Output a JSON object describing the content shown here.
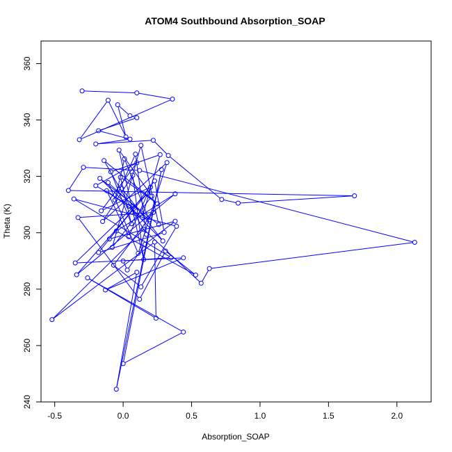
{
  "chart_data": {
    "type": "line",
    "title": "ATOM4 Southbound Absorption_SOAP",
    "xlabel": "Absorption_SOAP",
    "ylabel": "Theta (K)",
    "xlim": [
      -0.6,
      2.25
    ],
    "ylim": [
      240,
      368
    ],
    "x_ticks": [
      -0.5,
      0.0,
      0.5,
      1.0,
      1.5,
      2.0
    ],
    "x_tick_labels": [
      "-0.5",
      "0.0",
      "0.5",
      "1.0",
      "1.5",
      "2.0"
    ],
    "y_ticks": [
      240,
      260,
      280,
      300,
      320,
      340,
      360
    ],
    "y_tick_labels": [
      "240",
      "260",
      "280",
      "300",
      "320",
      "340",
      "360"
    ],
    "grid": false,
    "series_color": "#0000ff",
    "marker": "open-circle",
    "points": [
      [
        -0.3,
        350.3
      ],
      [
        0.1,
        349.6
      ],
      [
        0.36,
        347.4
      ],
      [
        -0.32,
        333.0
      ],
      [
        -0.11,
        347.0
      ],
      [
        0.02,
        334.0
      ],
      [
        -0.04,
        345.4
      ],
      [
        0.05,
        341.5
      ],
      [
        0.1,
        340.8
      ],
      [
        -0.18,
        336.2
      ],
      [
        0.05,
        333.2
      ],
      [
        -0.2,
        331.5
      ],
      [
        0.22,
        332.8
      ],
      [
        0.33,
        327.4
      ],
      [
        0.72,
        311.8
      ],
      [
        0.84,
        310.5
      ],
      [
        1.69,
        313.1
      ],
      [
        -0.4,
        315.0
      ],
      [
        -0.29,
        323.2
      ],
      [
        0.12,
        322.1
      ],
      [
        2.13,
        296.6
      ],
      [
        0.63,
        287.3
      ],
      [
        0.57,
        282.1
      ],
      [
        0.15,
        301.2
      ],
      [
        -0.52,
        269.2
      ],
      [
        0.23,
        296.7
      ],
      [
        0.24,
        269.7
      ],
      [
        -0.26,
        284.0
      ],
      [
        0.44,
        264.8
      ],
      [
        0.0,
        253.6
      ],
      [
        0.28,
        322.4
      ],
      [
        -0.05,
        244.5
      ],
      [
        0.1,
        286.0
      ],
      [
        -0.13,
        279.7
      ],
      [
        0.44,
        291.1
      ],
      [
        -0.35,
        289.3
      ],
      [
        0.18,
        314.1
      ],
      [
        -0.34,
        285.1
      ],
      [
        0.38,
        313.8
      ],
      [
        -0.05,
        300.6
      ],
      [
        0.53,
        285.0
      ],
      [
        0.31,
        293.5
      ],
      [
        0.12,
        276.4
      ],
      [
        -0.33,
        305.4
      ],
      [
        0.22,
        307.2
      ],
      [
        -0.07,
        288.5
      ],
      [
        0.13,
        280.8
      ],
      [
        0.39,
        302.3
      ],
      [
        -0.36,
        312.0
      ],
      [
        0.35,
        291.2
      ],
      [
        0.0,
        290.0
      ],
      [
        0.03,
        286.8
      ],
      [
        0.16,
        295.9
      ],
      [
        0.38,
        304.1
      ],
      [
        -0.1,
        297.8
      ],
      [
        0.23,
        318.4
      ],
      [
        0.3,
        300.1
      ],
      [
        -0.18,
        293.0
      ],
      [
        0.08,
        308.7
      ],
      [
        -0.2,
        316.7
      ],
      [
        0.1,
        324.8
      ],
      [
        -0.16,
        307.8
      ],
      [
        0.2,
        316.2
      ],
      [
        0.04,
        298.6
      ],
      [
        -0.12,
        314.9
      ],
      [
        0.14,
        305.5
      ],
      [
        0.27,
        327.7
      ],
      [
        -0.09,
        321.6
      ],
      [
        0.06,
        303.2
      ],
      [
        -0.02,
        319.7
      ],
      [
        0.25,
        310.3
      ],
      [
        -0.14,
        325.6
      ],
      [
        0.17,
        299.4
      ],
      [
        0.09,
        327.9
      ],
      [
        -0.06,
        311.6
      ],
      [
        0.01,
        326.2
      ],
      [
        0.19,
        304.6
      ],
      [
        -0.11,
        317.8
      ],
      [
        0.11,
        292.7
      ],
      [
        0.32,
        324.9
      ],
      [
        -0.15,
        304.0
      ],
      [
        0.07,
        320.4
      ],
      [
        0.15,
        290.5
      ],
      [
        -0.03,
        329.3
      ],
      [
        0.21,
        313.0
      ],
      [
        -0.08,
        294.8
      ],
      [
        0.13,
        331.0
      ],
      [
        0.26,
        302.9
      ],
      [
        -0.17,
        319.3
      ],
      [
        0.04,
        309.4
      ],
      [
        0.29,
        297.1
      ],
      [
        -0.01,
        315.7
      ]
    ]
  }
}
